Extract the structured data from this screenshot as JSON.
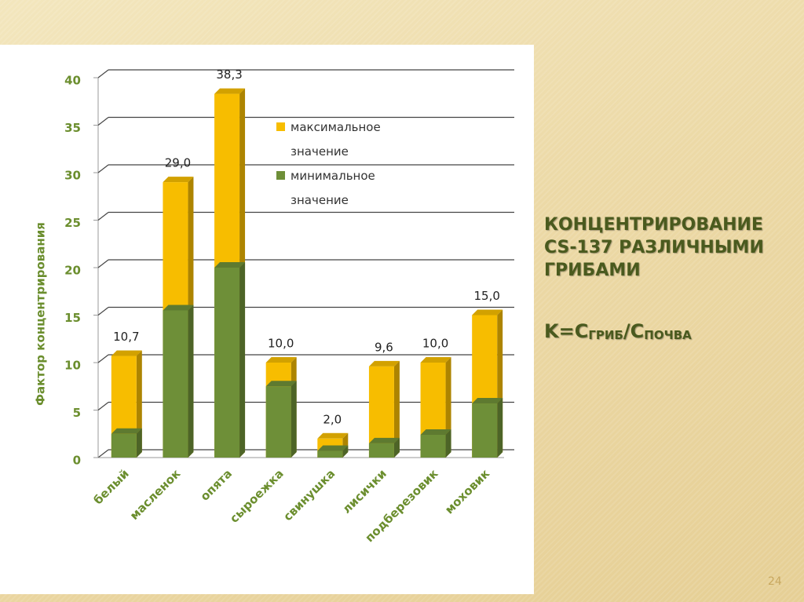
{
  "heading": "КОНЦЕНТРИРОВАНИЕ CS-137 РАЗЛИЧНЫМИ ГРИБАМИ",
  "formula": {
    "lhs": "K=C",
    "sub1": "ГРИБ",
    "mid": "/C",
    "sub2": "ПОЧВА"
  },
  "page_number": "24",
  "chart_data": {
    "type": "bar",
    "y_label": "Фактор концентрирования",
    "categories": [
      "белый",
      "масленок",
      "опята",
      "сыроежка",
      "свинушка",
      "лисички",
      "подберезовик",
      "моховик"
    ],
    "series": [
      {
        "name": "максимальное значение",
        "color": "#f7bd00",
        "values": [
          10.7,
          29.0,
          38.3,
          10.0,
          2.0,
          9.6,
          10.0,
          15.0
        ],
        "value_labels": [
          "10,7",
          "29,0",
          "38,3",
          "10,0",
          "2,0",
          "9,6",
          "10,0",
          "15,0"
        ]
      },
      {
        "name": "минимальное значение",
        "color": "#6e8f38",
        "values": [
          2.5,
          15.5,
          20.0,
          7.5,
          0.7,
          1.5,
          2.4,
          5.7
        ]
      }
    ],
    "ylim": [
      0,
      40
    ],
    "yticks": [
      0,
      5,
      10,
      15,
      20,
      25,
      30,
      35,
      40
    ],
    "grid": true
  }
}
